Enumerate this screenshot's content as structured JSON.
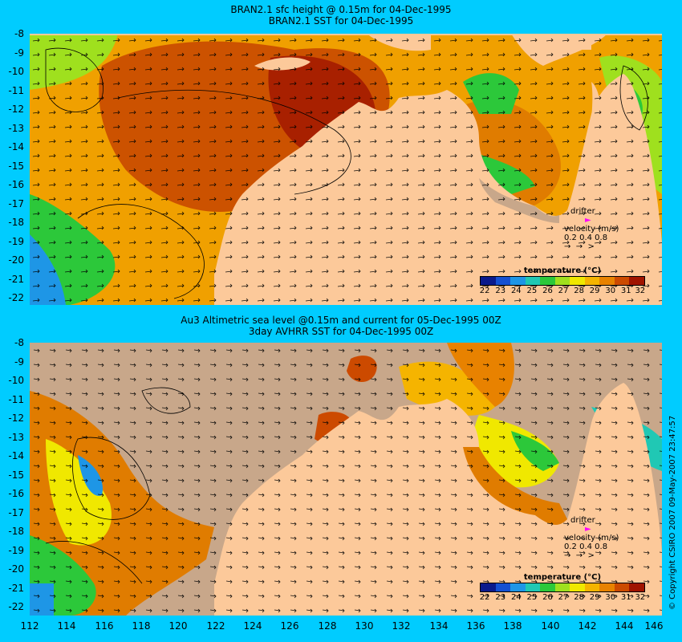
{
  "top_panel": {
    "title_line1": "BRAN2.1 sfc height @ 0.15m for 04-Dec-1995",
    "title_line2": "BRAN2.1  SST for 04-Dec-1995"
  },
  "bottom_panel": {
    "title_line1": "Au3 Altimetric sea level  @0.15m and current for 05-Dec-1995 00Z",
    "title_line2": "3day AVHRR SST for 04-Dec-1995 00Z"
  },
  "y_ticks": [
    "-8",
    "-9",
    "-10",
    "-11",
    "-12",
    "-13",
    "-14",
    "-15",
    "-16",
    "-17",
    "-18",
    "-19",
    "-20",
    "-21",
    "-22"
  ],
  "x_ticks": [
    "112",
    "114",
    "116",
    "118",
    "120",
    "122",
    "124",
    "126",
    "128",
    "130",
    "132",
    "134",
    "136",
    "138",
    "140",
    "142",
    "144",
    "146"
  ],
  "legend": {
    "title": "temperature (°C)",
    "ticks": [
      "22",
      "23",
      "24",
      "25",
      "26",
      "27",
      "28",
      "29",
      "30",
      "31",
      "32"
    ],
    "colors": [
      "#0a1a8c",
      "#1450d2",
      "#1e96e6",
      "#20c8b4",
      "#2cc83a",
      "#9fe01e",
      "#f0e800",
      "#f5b400",
      "#e88200",
      "#cc4a00",
      "#a01400"
    ]
  },
  "drifter_key": {
    "label": "drifter",
    "velocity_label": "velocity (m/s)",
    "speeds": "0.2 0.4 0.8",
    "marker_color": "#ff00ff"
  },
  "copyright": "© Copyright CSIRO 2007  09-May-2007 23:47:57",
  "map_colors": {
    "land": "#fcc99a",
    "no_data": "#c8a78a",
    "ocean_background": "#00ccff"
  }
}
